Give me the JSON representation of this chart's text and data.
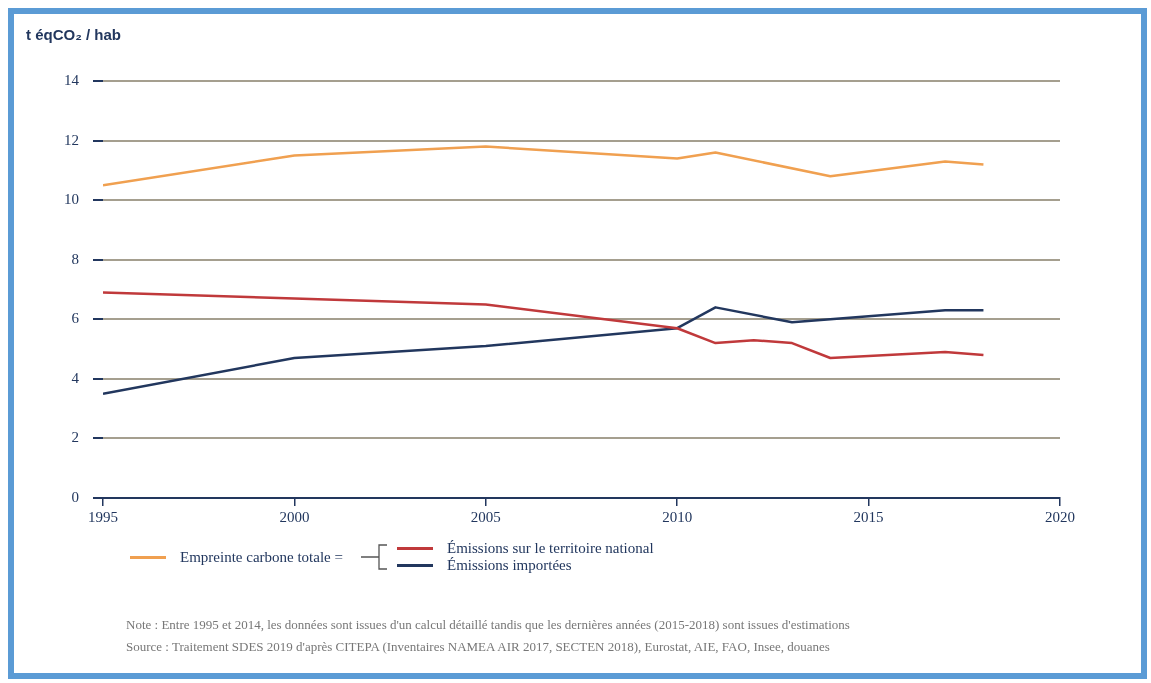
{
  "chart_data": {
    "type": "line",
    "ylabel": "t éqCO₂ / hab",
    "xlim": [
      1995,
      2020
    ],
    "xticks": [
      1995,
      2000,
      2005,
      2010,
      2015,
      2020
    ],
    "ylim": [
      0,
      14
    ],
    "yticks": [
      0,
      2,
      4,
      6,
      8,
      10,
      12,
      14
    ],
    "grid": "y",
    "legend": "bottom",
    "marker": "none",
    "line_style": "solid",
    "series": [
      {
        "name": "Empreinte carbone totale =",
        "color": "#f0a050",
        "x": [
          1995,
          2000,
          2005,
          2010,
          2011,
          2014,
          2017,
          2018
        ],
        "values": [
          10.5,
          11.5,
          11.8,
          11.4,
          11.6,
          10.8,
          11.3,
          11.2
        ]
      },
      {
        "name": "Émissions sur le territoire national",
        "color": "#c0393b",
        "x": [
          1995,
          2000,
          2005,
          2010,
          2011,
          2012,
          2013,
          2014,
          2017,
          2018
        ],
        "values": [
          6.9,
          6.7,
          6.5,
          5.7,
          5.2,
          5.3,
          5.2,
          4.7,
          4.9,
          4.8
        ]
      },
      {
        "name": "Émissions importées",
        "color": "#22375e",
        "x": [
          1995,
          2000,
          2005,
          2010,
          2011,
          2013,
          2014,
          2017,
          2018
        ],
        "values": [
          3.5,
          4.7,
          5.1,
          5.7,
          6.4,
          5.9,
          6.0,
          6.3,
          6.3
        ]
      }
    ],
    "annotations": [
      "Note : Entre 1995 et 2014, les données sont issues d'un calcul détaillé tandis que les dernières années (2015-2018) sont issues d'estimations",
      "Source : Traitement SDES 2019 d'après CITEPA (Inventaires NAMEA AIR 2017, SECTEN 2018), Eurostat, AIE, FAO, Insee, douanes"
    ]
  }
}
